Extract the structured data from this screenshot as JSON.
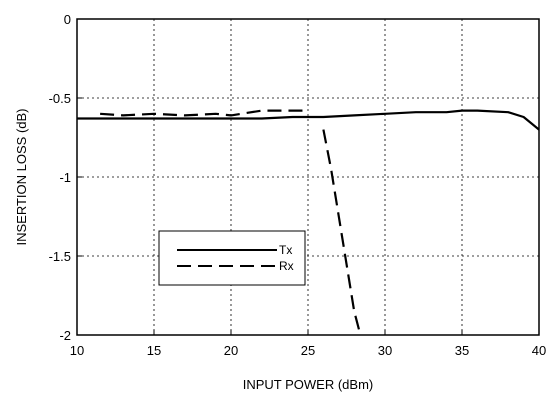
{
  "chart_data": {
    "type": "line",
    "title": "",
    "xlabel": "INPUT POWER (dBm)",
    "ylabel": "INSERTION LOSS (dB)",
    "xlim": [
      10,
      40
    ],
    "ylim": [
      -2,
      0
    ],
    "xticks": [
      10,
      15,
      20,
      25,
      30,
      35,
      40
    ],
    "yticks": [
      0,
      -0.5,
      -1,
      -1.5,
      -2
    ],
    "xtick_labels": [
      "10",
      "15",
      "20",
      "25",
      "30",
      "35",
      "40"
    ],
    "ytick_labels": [
      "0",
      "-0.5",
      "-1",
      "-1.5",
      "-2"
    ],
    "grid": true,
    "legend_position": "lower-left",
    "series": [
      {
        "name": "Tx",
        "style": "solid",
        "x": [
          10,
          15,
          20,
          22,
          24,
          26,
          28,
          30,
          32,
          34,
          35,
          36,
          38,
          39,
          40
        ],
        "y": [
          -0.63,
          -0.63,
          -0.63,
          -0.63,
          -0.62,
          -0.62,
          -0.61,
          -0.6,
          -0.59,
          -0.59,
          -0.58,
          -0.58,
          -0.59,
          -0.62,
          -0.7
        ]
      },
      {
        "name": "Rx",
        "style": "dashed",
        "x": [
          11.5,
          13,
          15,
          17,
          19,
          20,
          22,
          24,
          25
        ],
        "y": [
          -0.6,
          -0.61,
          -0.6,
          -0.61,
          -0.6,
          -0.61,
          -0.58,
          -0.58,
          -0.58
        ]
      },
      {
        "name": "Rx",
        "style": "dashed",
        "segment": "drop",
        "x": [
          26,
          26.5,
          27,
          27.5,
          28,
          28.4
        ],
        "y": [
          -0.7,
          -0.95,
          -1.25,
          -1.55,
          -1.85,
          -2.0
        ]
      }
    ]
  }
}
